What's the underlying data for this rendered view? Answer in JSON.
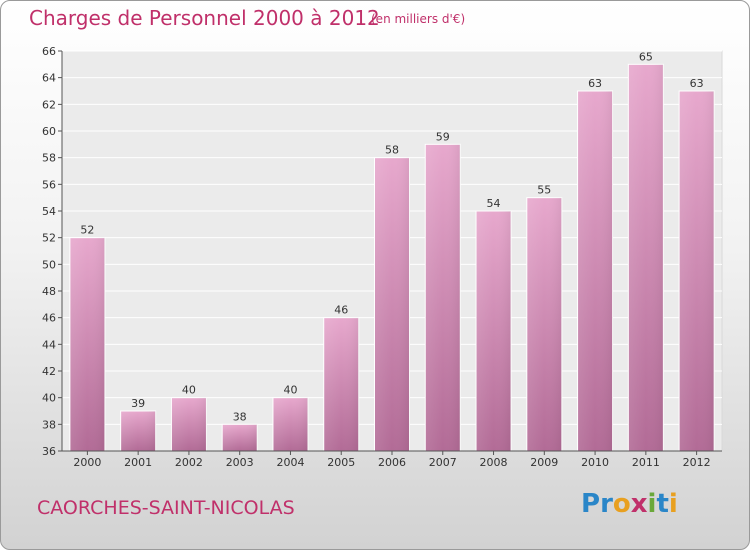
{
  "chart_data": {
    "type": "bar",
    "title": "Charges de Personnel 2000 à 2012",
    "subtitle": "(en milliers d'€)",
    "categories": [
      "2000",
      "2001",
      "2002",
      "2003",
      "2004",
      "2005",
      "2006",
      "2007",
      "2008",
      "2009",
      "2010",
      "2011",
      "2012"
    ],
    "values": [
      52,
      39,
      40,
      38,
      40,
      46,
      58,
      59,
      54,
      55,
      63,
      65,
      63
    ],
    "ylim": [
      36,
      66
    ],
    "yticks": [
      36,
      38,
      40,
      42,
      44,
      46,
      48,
      50,
      52,
      54,
      56,
      58,
      60,
      62,
      64,
      66
    ],
    "grid": true,
    "bar_color": "#d98ab5"
  },
  "footer": {
    "commune": "CAORCHES-SAINT-NICOLAS",
    "brand_letters": [
      "P",
      "r",
      "o",
      "x",
      "i",
      "t",
      "i"
    ],
    "brand_colors": [
      "#2a86c8",
      "#2a86c8",
      "#e8a020",
      "#c0306a",
      "#6aa83a",
      "#2a86c8",
      "#e8a020"
    ]
  }
}
